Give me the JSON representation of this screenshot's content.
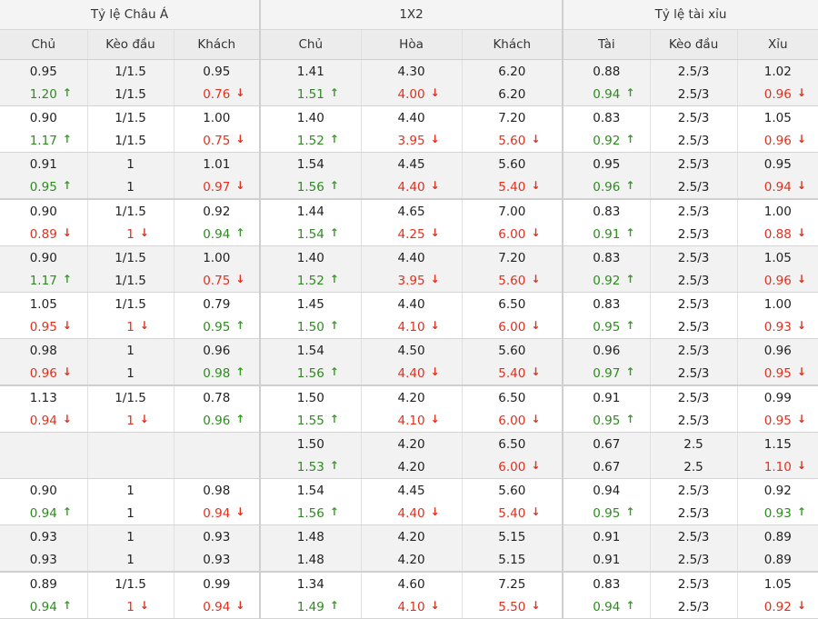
{
  "header": {
    "groups": [
      "Tỷ lệ Châu Á",
      "1X2",
      "Tỷ lệ tài xỉu"
    ],
    "columns": [
      "Chủ",
      "Kèo đầu",
      "Khách",
      "Chủ",
      "Hòa",
      "Khách",
      "Tài",
      "Kèo đầu",
      "Xỉu"
    ]
  },
  "colors": {
    "up": "#2e8b1f",
    "down": "#e0301e",
    "shade": "#f2f2f2",
    "header": "#ececec"
  },
  "rows": [
    {
      "shade": true,
      "sep": false,
      "top": [
        [
          "0.95",
          ""
        ],
        [
          "1/1.5",
          ""
        ],
        [
          "0.95",
          ""
        ],
        [
          "1.41",
          ""
        ],
        [
          "4.30",
          ""
        ],
        [
          "6.20",
          ""
        ],
        [
          "0.88",
          ""
        ],
        [
          "2.5/3",
          ""
        ],
        [
          "1.02",
          ""
        ]
      ],
      "bottom": [
        [
          "1.20",
          "up"
        ],
        [
          "1/1.5",
          ""
        ],
        [
          "0.76",
          "down"
        ],
        [
          "1.51",
          "up"
        ],
        [
          "4.00",
          "down"
        ],
        [
          "6.20",
          ""
        ],
        [
          "0.94",
          "up"
        ],
        [
          "2.5/3",
          ""
        ],
        [
          "0.96",
          "down"
        ]
      ]
    },
    {
      "shade": false,
      "sep": false,
      "top": [
        [
          "0.90",
          ""
        ],
        [
          "1/1.5",
          ""
        ],
        [
          "1.00",
          ""
        ],
        [
          "1.40",
          ""
        ],
        [
          "4.40",
          ""
        ],
        [
          "7.20",
          ""
        ],
        [
          "0.83",
          ""
        ],
        [
          "2.5/3",
          ""
        ],
        [
          "1.05",
          ""
        ]
      ],
      "bottom": [
        [
          "1.17",
          "up"
        ],
        [
          "1/1.5",
          ""
        ],
        [
          "0.75",
          "down"
        ],
        [
          "1.52",
          "up"
        ],
        [
          "3.95",
          "down"
        ],
        [
          "5.60",
          "down"
        ],
        [
          "0.92",
          "up"
        ],
        [
          "2.5/3",
          ""
        ],
        [
          "0.96",
          "down"
        ]
      ]
    },
    {
      "shade": true,
      "sep": false,
      "top": [
        [
          "0.91",
          ""
        ],
        [
          "1",
          ""
        ],
        [
          "1.01",
          ""
        ],
        [
          "1.54",
          ""
        ],
        [
          "4.45",
          ""
        ],
        [
          "5.60",
          ""
        ],
        [
          "0.95",
          ""
        ],
        [
          "2.5/3",
          ""
        ],
        [
          "0.95",
          ""
        ]
      ],
      "bottom": [
        [
          "0.95",
          "up"
        ],
        [
          "1",
          ""
        ],
        [
          "0.97",
          "down"
        ],
        [
          "1.56",
          "up"
        ],
        [
          "4.40",
          "down"
        ],
        [
          "5.40",
          "down"
        ],
        [
          "0.96",
          "up"
        ],
        [
          "2.5/3",
          ""
        ],
        [
          "0.94",
          "down"
        ]
      ]
    },
    {
      "shade": false,
      "sep": true,
      "top": [
        [
          "0.90",
          ""
        ],
        [
          "1/1.5",
          ""
        ],
        [
          "0.92",
          ""
        ],
        [
          "1.44",
          ""
        ],
        [
          "4.65",
          ""
        ],
        [
          "7.00",
          ""
        ],
        [
          "0.83",
          ""
        ],
        [
          "2.5/3",
          ""
        ],
        [
          "1.00",
          ""
        ]
      ],
      "bottom": [
        [
          "0.89",
          "down"
        ],
        [
          "1",
          "down"
        ],
        [
          "0.94",
          "up"
        ],
        [
          "1.54",
          "up"
        ],
        [
          "4.25",
          "down"
        ],
        [
          "6.00",
          "down"
        ],
        [
          "0.91",
          "up"
        ],
        [
          "2.5/3",
          ""
        ],
        [
          "0.88",
          "down"
        ]
      ]
    },
    {
      "shade": true,
      "sep": false,
      "top": [
        [
          "0.90",
          ""
        ],
        [
          "1/1.5",
          ""
        ],
        [
          "1.00",
          ""
        ],
        [
          "1.40",
          ""
        ],
        [
          "4.40",
          ""
        ],
        [
          "7.20",
          ""
        ],
        [
          "0.83",
          ""
        ],
        [
          "2.5/3",
          ""
        ],
        [
          "1.05",
          ""
        ]
      ],
      "bottom": [
        [
          "1.17",
          "up"
        ],
        [
          "1/1.5",
          ""
        ],
        [
          "0.75",
          "down"
        ],
        [
          "1.52",
          "up"
        ],
        [
          "3.95",
          "down"
        ],
        [
          "5.60",
          "down"
        ],
        [
          "0.92",
          "up"
        ],
        [
          "2.5/3",
          ""
        ],
        [
          "0.96",
          "down"
        ]
      ]
    },
    {
      "shade": false,
      "sep": false,
      "top": [
        [
          "1.05",
          ""
        ],
        [
          "1/1.5",
          ""
        ],
        [
          "0.79",
          ""
        ],
        [
          "1.45",
          ""
        ],
        [
          "4.40",
          ""
        ],
        [
          "6.50",
          ""
        ],
        [
          "0.83",
          ""
        ],
        [
          "2.5/3",
          ""
        ],
        [
          "1.00",
          ""
        ]
      ],
      "bottom": [
        [
          "0.95",
          "down"
        ],
        [
          "1",
          "down"
        ],
        [
          "0.95",
          "up"
        ],
        [
          "1.50",
          "up"
        ],
        [
          "4.10",
          "down"
        ],
        [
          "6.00",
          "down"
        ],
        [
          "0.95",
          "up"
        ],
        [
          "2.5/3",
          ""
        ],
        [
          "0.93",
          "down"
        ]
      ]
    },
    {
      "shade": true,
      "sep": false,
      "top": [
        [
          "0.98",
          ""
        ],
        [
          "1",
          ""
        ],
        [
          "0.96",
          ""
        ],
        [
          "1.54",
          ""
        ],
        [
          "4.50",
          ""
        ],
        [
          "5.60",
          ""
        ],
        [
          "0.96",
          ""
        ],
        [
          "2.5/3",
          ""
        ],
        [
          "0.96",
          ""
        ]
      ],
      "bottom": [
        [
          "0.96",
          "down"
        ],
        [
          "1",
          ""
        ],
        [
          "0.98",
          "up"
        ],
        [
          "1.56",
          "up"
        ],
        [
          "4.40",
          "down"
        ],
        [
          "5.40",
          "down"
        ],
        [
          "0.97",
          "up"
        ],
        [
          "2.5/3",
          ""
        ],
        [
          "0.95",
          "down"
        ]
      ]
    },
    {
      "shade": false,
      "sep": true,
      "top": [
        [
          "1.13",
          ""
        ],
        [
          "1/1.5",
          ""
        ],
        [
          "0.78",
          ""
        ],
        [
          "1.50",
          ""
        ],
        [
          "4.20",
          ""
        ],
        [
          "6.50",
          ""
        ],
        [
          "0.91",
          ""
        ],
        [
          "2.5/3",
          ""
        ],
        [
          "0.99",
          ""
        ]
      ],
      "bottom": [
        [
          "0.94",
          "down"
        ],
        [
          "1",
          "down"
        ],
        [
          "0.96",
          "up"
        ],
        [
          "1.55",
          "up"
        ],
        [
          "4.10",
          "down"
        ],
        [
          "6.00",
          "down"
        ],
        [
          "0.95",
          "up"
        ],
        [
          "2.5/3",
          ""
        ],
        [
          "0.95",
          "down"
        ]
      ]
    },
    {
      "shade": true,
      "sep": false,
      "top": [
        [
          "",
          ""
        ],
        [
          "",
          ""
        ],
        [
          "",
          ""
        ],
        [
          "1.50",
          ""
        ],
        [
          "4.20",
          ""
        ],
        [
          "6.50",
          ""
        ],
        [
          "0.67",
          ""
        ],
        [
          "2.5",
          ""
        ],
        [
          "1.15",
          ""
        ]
      ],
      "bottom": [
        [
          "",
          ""
        ],
        [
          "",
          ""
        ],
        [
          "",
          ""
        ],
        [
          "1.53",
          "up"
        ],
        [
          "4.20",
          ""
        ],
        [
          "6.00",
          "down"
        ],
        [
          "0.67",
          ""
        ],
        [
          "2.5",
          ""
        ],
        [
          "1.10",
          "down"
        ]
      ]
    },
    {
      "shade": false,
      "sep": false,
      "top": [
        [
          "0.90",
          ""
        ],
        [
          "1",
          ""
        ],
        [
          "0.98",
          ""
        ],
        [
          "1.54",
          ""
        ],
        [
          "4.45",
          ""
        ],
        [
          "5.60",
          ""
        ],
        [
          "0.94",
          ""
        ],
        [
          "2.5/3",
          ""
        ],
        [
          "0.92",
          ""
        ]
      ],
      "bottom": [
        [
          "0.94",
          "up"
        ],
        [
          "1",
          ""
        ],
        [
          "0.94",
          "down"
        ],
        [
          "1.56",
          "up"
        ],
        [
          "4.40",
          "down"
        ],
        [
          "5.40",
          "down"
        ],
        [
          "0.95",
          "up"
        ],
        [
          "2.5/3",
          ""
        ],
        [
          "0.93",
          "up"
        ]
      ]
    },
    {
      "shade": true,
      "sep": false,
      "top": [
        [
          "0.93",
          ""
        ],
        [
          "1",
          ""
        ],
        [
          "0.93",
          ""
        ],
        [
          "1.48",
          ""
        ],
        [
          "4.20",
          ""
        ],
        [
          "5.15",
          ""
        ],
        [
          "0.91",
          ""
        ],
        [
          "2.5/3",
          ""
        ],
        [
          "0.89",
          ""
        ]
      ],
      "bottom": [
        [
          "0.93",
          ""
        ],
        [
          "1",
          ""
        ],
        [
          "0.93",
          ""
        ],
        [
          "1.48",
          ""
        ],
        [
          "4.20",
          ""
        ],
        [
          "5.15",
          ""
        ],
        [
          "0.91",
          ""
        ],
        [
          "2.5/3",
          ""
        ],
        [
          "0.89",
          ""
        ]
      ]
    },
    {
      "shade": false,
      "sep": true,
      "top": [
        [
          "0.89",
          ""
        ],
        [
          "1/1.5",
          ""
        ],
        [
          "0.99",
          ""
        ],
        [
          "1.34",
          ""
        ],
        [
          "4.60",
          ""
        ],
        [
          "7.25",
          ""
        ],
        [
          "0.83",
          ""
        ],
        [
          "2.5/3",
          ""
        ],
        [
          "1.05",
          ""
        ]
      ],
      "bottom": [
        [
          "0.94",
          "up"
        ],
        [
          "1",
          "down"
        ],
        [
          "0.94",
          "down"
        ],
        [
          "1.49",
          "up"
        ],
        [
          "4.10",
          "down"
        ],
        [
          "5.50",
          "down"
        ],
        [
          "0.94",
          "up"
        ],
        [
          "2.5/3",
          ""
        ],
        [
          "0.92",
          "down"
        ]
      ]
    }
  ]
}
